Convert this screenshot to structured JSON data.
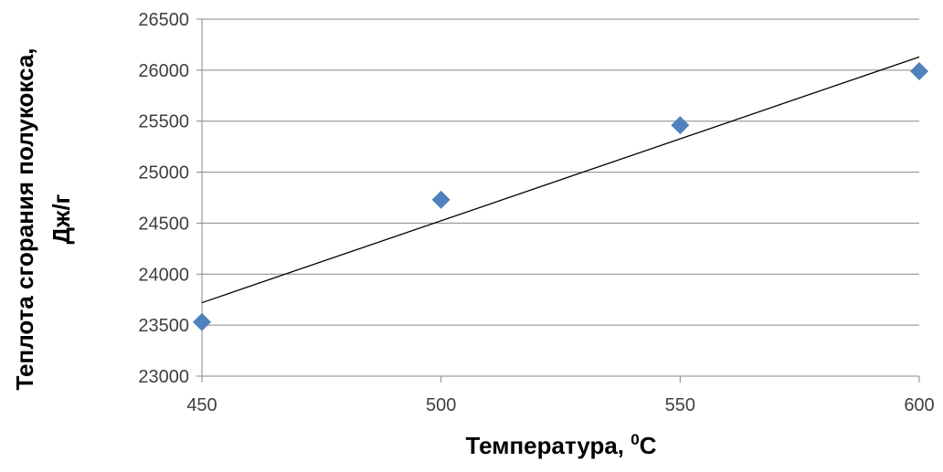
{
  "chart_data": {
    "type": "scatter",
    "title": "",
    "xlabel": "Температура, ",
    "xlabel_sup": "0",
    "xlabel_unit": "С",
    "ylabel_line1": "Теплота сгорания полукокса,",
    "ylabel_line2": "Дж/г",
    "xlim": [
      450,
      600
    ],
    "ylim": [
      23000,
      26500
    ],
    "x_ticks": [
      450,
      500,
      550,
      600
    ],
    "y_ticks": [
      23000,
      23500,
      24000,
      24500,
      25000,
      25500,
      26000,
      26500
    ],
    "grid": "horizontal",
    "legend": "none",
    "series": [
      {
        "marker": "diamond",
        "color": "#4f81bd",
        "points": [
          {
            "x": 450,
            "y": 23530
          },
          {
            "x": 500,
            "y": 24730
          },
          {
            "x": 550,
            "y": 25460
          },
          {
            "x": 600,
            "y": 25990
          }
        ]
      }
    ],
    "trendline": {
      "type": "linear",
      "color": "#000000",
      "from": {
        "x": 450,
        "y": 23720
      },
      "to": {
        "x": 600,
        "y": 26130
      }
    }
  }
}
